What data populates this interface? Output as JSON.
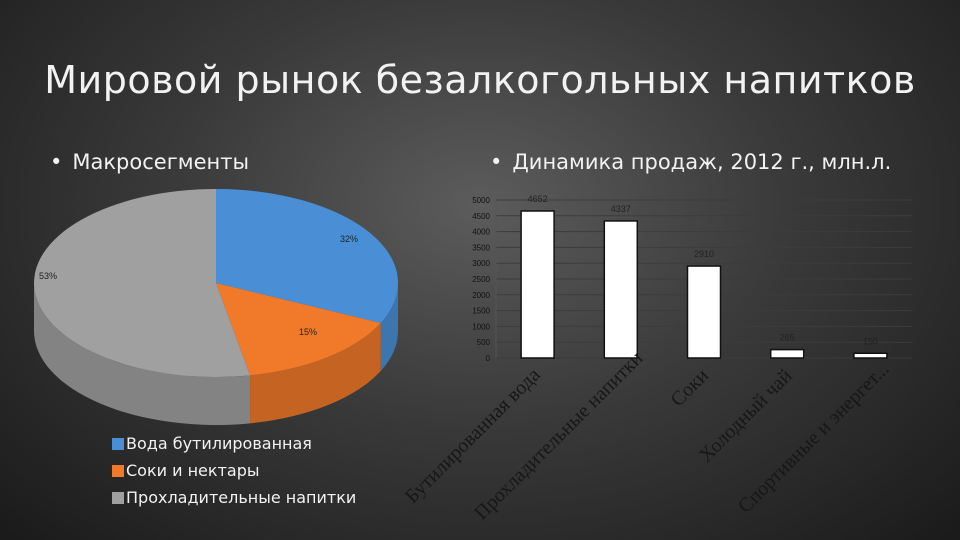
{
  "slide": {
    "title": "Мировой рынок безалкогольных напитков",
    "bullet_left": "Макросегменты",
    "bullet_right": "Динамика продаж, 2012 г., млн.л.",
    "bullet_glyph": "•"
  },
  "chart_data": [
    {
      "type": "pie",
      "title": "",
      "style": "3d",
      "categories": [
        "Вода бутилированная",
        "Соки и нектары",
        "Прохладительные напитки"
      ],
      "values": [
        32,
        15,
        53
      ],
      "labels": [
        "32%",
        "15%",
        "53%"
      ],
      "colors": [
        "#4a8fd6",
        "#f07a2a",
        "#a0a0a0"
      ],
      "legend_position": "bottom-left"
    },
    {
      "type": "bar",
      "title": "",
      "categories": [
        "Бутилированная вода",
        "Прохладительные напитки",
        "Соки",
        "Холодный чай",
        "Спортивные и энергет..."
      ],
      "values": [
        4652,
        4337,
        2910,
        265,
        150
      ],
      "labels": [
        "4652",
        "4337",
        "2910",
        "265",
        "150"
      ],
      "ylim": [
        0,
        5000
      ],
      "yticks": [
        "0",
        "500",
        "1000",
        "1500",
        "2000",
        "2500",
        "3000",
        "3500",
        "4000",
        "4500",
        "5000"
      ],
      "bar_color": "#ffffff",
      "grid": true
    }
  ]
}
